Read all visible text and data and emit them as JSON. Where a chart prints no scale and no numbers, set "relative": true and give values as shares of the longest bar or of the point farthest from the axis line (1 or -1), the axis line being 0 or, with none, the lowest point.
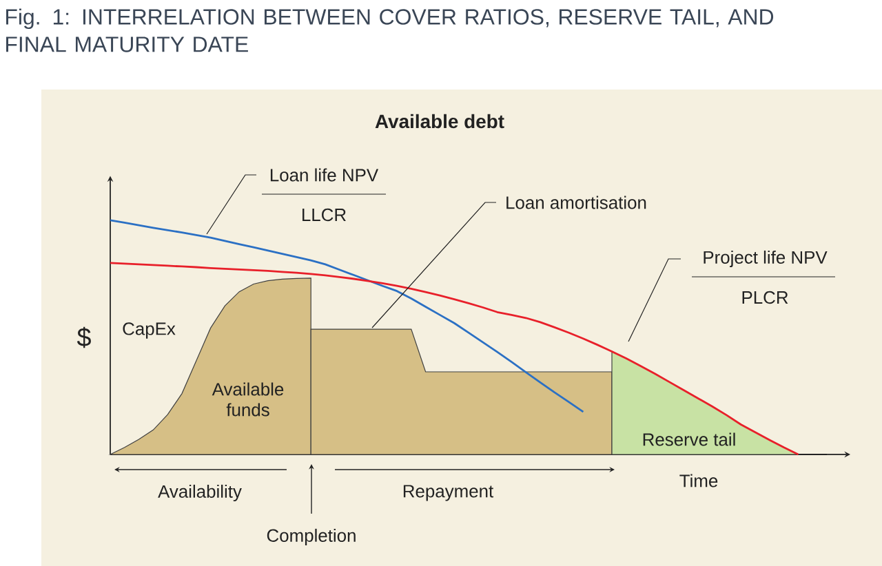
{
  "chart_data": {
    "type": "area",
    "title": "Fig. 1: INTERRELATION BETWEEN COVER RATIOS, RESERVE TAIL, AND FINAL MATURITY DATE",
    "subtitle": "Available debt",
    "xlabel": "Time",
    "ylabel": "$",
    "relative": true,
    "categories": [
      null,
      null,
      null,
      null,
      null,
      null,
      null,
      null,
      null,
      null,
      null,
      null,
      null,
      null,
      null,
      null,
      null,
      null,
      null,
      null,
      null,
      null,
      null,
      null,
      null,
      null,
      null,
      null,
      null,
      null,
      null,
      null,
      null,
      null,
      null,
      null,
      null,
      null,
      null,
      null,
      null,
      null,
      null,
      null,
      null,
      null,
      null,
      null,
      null,
      null,
      null
    ],
    "series": [
      {
        "color": "#d6bf86",
        "values": [
          0,
          0.03,
          0.065,
          0.105,
          0.17,
          0.26,
          0.4,
          0.54,
          0.635,
          0.695,
          0.728,
          0.742,
          0.749,
          0.752,
          0.753,
          null,
          null,
          null,
          null,
          null,
          null,
          null,
          null,
          null,
          null,
          null,
          null,
          null,
          null,
          null,
          null,
          null,
          null,
          null,
          null,
          null,
          null,
          null,
          null,
          null,
          null,
          null,
          null,
          null,
          null,
          null,
          null,
          null,
          null,
          null,
          null
        ]
      },
      {
        "color": "#d6bf86",
        "values": [
          null,
          null,
          null,
          null,
          null,
          null,
          null,
          null,
          null,
          null,
          null,
          null,
          null,
          null,
          0.535,
          0.535,
          0.535,
          0.535,
          0.535,
          0.535,
          0.535,
          0.535,
          0.353,
          0.353,
          0.353,
          0.353,
          0.353,
          0.353,
          0.353,
          0.353,
          0.353,
          0.353,
          0.353,
          0.353,
          0.353,
          0.353,
          null,
          null,
          null,
          null,
          null,
          null,
          null,
          null,
          null,
          null,
          null,
          null,
          null,
          null,
          null
        ]
      },
      {
        "color": "#c8e2a4",
        "values": [
          null,
          null,
          null,
          null,
          null,
          null,
          null,
          null,
          null,
          null,
          null,
          null,
          null,
          null,
          null,
          null,
          null,
          null,
          null,
          null,
          null,
          null,
          null,
          null,
          null,
          null,
          null,
          null,
          null,
          null,
          null,
          null,
          null,
          null,
          null,
          0.44,
          0.41,
          0.378,
          0.345,
          0.31,
          0.275,
          0.24,
          0.205,
          0.168,
          0.128,
          0.095,
          0.062,
          0.03,
          0,
          null,
          null
        ]
      },
      {
        "type": "line",
        "color": "#2b70c4",
        "values": [
          1,
          0.99,
          0.979,
          0.968,
          0.958,
          0.948,
          0.937,
          0.926,
          0.912,
          0.898,
          0.885,
          0.871,
          0.857,
          0.843,
          0.829,
          0.812,
          0.789,
          0.766,
          0.743,
          0.72,
          0.698,
          0.666,
          0.631,
          0.596,
          0.561,
          0.52,
          0.479,
          0.438,
          0.395,
          0.351,
          0.308,
          0.265,
          0.224,
          0.182,
          null,
          null,
          null,
          null,
          null,
          null,
          null,
          null,
          null,
          null,
          null,
          null,
          null,
          null,
          null,
          null,
          null
        ]
      },
      {
        "type": "line",
        "color": "#e8202a",
        "values": [
          0.818,
          0.815,
          0.812,
          0.809,
          0.806,
          0.803,
          0.8,
          0.796,
          0.793,
          0.79,
          0.787,
          0.784,
          0.78,
          0.776,
          0.771,
          0.765,
          0.758,
          0.75,
          0.741,
          0.731,
          0.72,
          0.708,
          0.694,
          0.679,
          0.663,
          0.646,
          0.628,
          0.608,
          0.596,
          0.583,
          0.565,
          0.543,
          0.52,
          0.495,
          0.468,
          0.44,
          0.41,
          0.378,
          0.345,
          0.31,
          0.275,
          0.24,
          0.205,
          0.168,
          0.128,
          0.095,
          0.062,
          0.03,
          0,
          null,
          null
        ]
      }
    ],
    "annotations": [
      "Loan life NPV",
      "LLCR",
      "Loan amortisation",
      "Project life NPV",
      "PLCR",
      "CapEx",
      "Available funds",
      "Reserve tail",
      "Availability",
      "Completion",
      "Repayment"
    ]
  }
}
